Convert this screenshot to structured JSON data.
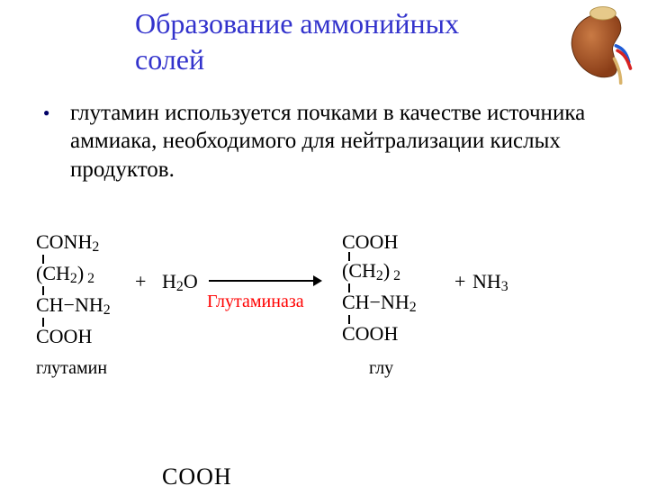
{
  "colors": {
    "title": "#3333cc",
    "body": "#000000",
    "bullet": "#000066",
    "enzyme": "#ff0000",
    "reaction_text": "#000000",
    "background": "#ffffff"
  },
  "typography": {
    "title_fontsize": 32,
    "body_fontsize": 25,
    "reaction_fontsize": 22,
    "label_fontsize": 20,
    "enzyme_fontsize": 20
  },
  "title": "Образование аммонийных солей",
  "bullet_text": " глутамин используется почками в качестве источника аммиака, необходимого для нейтрализации кислых продуктов.",
  "reaction": {
    "left_mol": {
      "l1": "CONH",
      "l1_sub": "2",
      "l2a": "(CH",
      "l2_sub": "2",
      "l2b": ")",
      "l2_sub2": " 2",
      "l3": "CH−NH",
      "l3_sub": "2",
      "l4": "COOH",
      "label": "глутамин"
    },
    "plus1": "+",
    "water": {
      "pre": "H",
      "sub1": "2",
      "post": "O"
    },
    "enzyme": "Глутаминаза",
    "right_mol": {
      "l1": "COOH",
      "l2a": "(CH",
      "l2_sub": "2",
      "l2b": ")",
      "l2_sub2": " 2",
      "l3": "CH−NH",
      "l3_sub": "2",
      "l4": "COOH",
      "label": "глу"
    },
    "plus2": "+",
    "ammonia": {
      "pre": "NH",
      "sub": "3"
    },
    "fragment": "COOH"
  },
  "arrow": {
    "length": 120,
    "stroke": "#000000",
    "stroke_width": 2
  },
  "kidney": {
    "body_fill": "#9b4a1f",
    "body_highlight": "#c97a44",
    "adrenal_fill": "#e6c98a",
    "vessel_blue": "#1e5bd6",
    "vessel_red": "#d62222",
    "ureter": "#d9b36a"
  }
}
